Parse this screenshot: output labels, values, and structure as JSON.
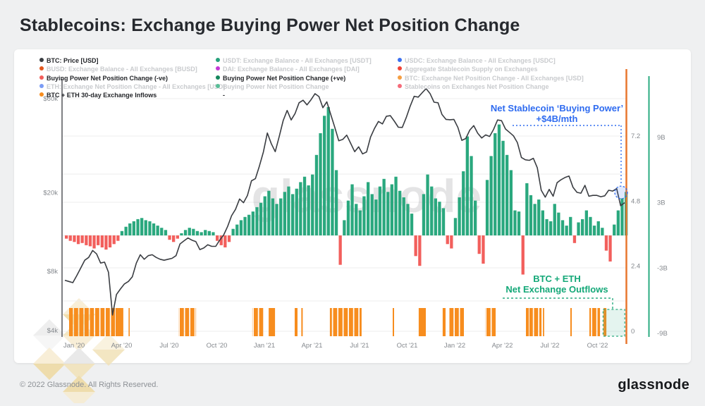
{
  "header": {
    "title": "Stablecoins: Exchange Buying Power Net Position Change"
  },
  "footer": {
    "copyright": "© 2022 Glassnode. All Rights Reserved.",
    "brand": "glassnode"
  },
  "watermark": "glassnode",
  "annotations": {
    "buying_power_line1": "Net Stablecoin ‘Buying Power’",
    "buying_power_line2": "+$4B/mth",
    "outflows_line1": "BTC + ETH",
    "outflows_line2": "Net Exchange Outflows"
  },
  "legend": {
    "columns": [
      [
        {
          "label": "BTC: Price [USD]",
          "color": "#3a3d42",
          "active": true
        },
        {
          "label": "BUSD: Exchange Balance - All Exchanges [BUSD]",
          "color": "#e2571e",
          "active": false
        },
        {
          "label": "Buying Power Net Position Change (-ve)",
          "color": "#f25f5c",
          "active": true
        },
        {
          "label": "ETH: Exchange Net Position Change - All Exchanges [USD]",
          "color": "#7b9cf5",
          "active": false
        },
        {
          "label": "BTC + ETH 30-day Exchange Inflows",
          "color": "#f78d1e",
          "active": true
        }
      ],
      [
        {
          "label": "USDT: Exchange Balance - All Exchanges [USDT]",
          "color": "#26a17b",
          "active": false
        },
        {
          "label": "DAI: Exchange Balance - All Exchanges [DAI]",
          "color": "#c43ad6",
          "active": false
        },
        {
          "label": "Buying Power Net Position Change (+ve)",
          "color": "#15865c",
          "active": true
        },
        {
          "label": "Buying Power Net Position Change",
          "color": "#57bd96",
          "active": false
        },
        {
          "label": "-",
          "color": "",
          "active": true
        }
      ],
      [
        {
          "label": "USDC: Exchange Balance - All Exchanges [USDC]",
          "color": "#3b70f0",
          "active": false
        },
        {
          "label": "Aggregate Stablecoin Supply on Exchanges",
          "color": "#f04438",
          "active": false
        },
        {
          "label": "BTC: Exchange Net Position Change - All Exchanges [USD]",
          "color": "#f59e42",
          "active": false
        },
        {
          "label": "Stablecoins on Exchanges Net Position Change",
          "color": "#f56b7a",
          "active": false
        }
      ]
    ]
  },
  "chart_data": {
    "type": "mixed",
    "x_axis": {
      "tick_labels": [
        "Jan '20",
        "Apr '20",
        "Jul '20",
        "Oct '20",
        "Jan '21",
        "Apr '21",
        "Jul '21",
        "Oct '21",
        "Jan '22",
        "Apr '22",
        "Jul '22",
        "Oct '22"
      ],
      "tick_months": [
        0,
        3,
        6,
        9,
        12,
        15,
        18,
        21,
        24,
        27,
        30,
        33
      ]
    },
    "y_axis_left_price": {
      "scale": "log",
      "labels": [
        "$60k",
        "$20k",
        "$8k",
        "$4k"
      ],
      "values_k": [
        60,
        20,
        8,
        4
      ],
      "color": "#85898e"
    },
    "y_axis_right_inflow": {
      "labels": [
        "7.2",
        "4.8",
        "2.4",
        "0"
      ],
      "values": [
        7.2,
        4.8,
        2.4,
        0
      ],
      "axis_color": "#e8772e"
    },
    "y_axis_right_buying_power": {
      "labels": [
        "9B",
        "3B",
        "-3B",
        "-9B"
      ],
      "values": [
        9,
        3,
        -3,
        -9
      ],
      "axis_color": "#2bab80"
    },
    "series": [
      {
        "name": "BTC: Price [USD]",
        "type": "line",
        "axis": "left_log",
        "unit": "thousand USD",
        "color": "#3a3d42",
        "start_month": -0.6,
        "step_month": 0.25,
        "values": [
          7.2,
          7.1,
          7.0,
          7.6,
          8.3,
          9.1,
          9.4,
          10.2,
          9.8,
          8.8,
          8.9,
          7.9,
          4.8,
          6.1,
          6.5,
          6.9,
          7.1,
          7.5,
          8.8,
          9.7,
          9.2,
          9.6,
          9.7,
          9.4,
          9.2,
          9.1,
          9.2,
          9.3,
          9.6,
          11.0,
          11.4,
          11.8,
          11.5,
          11.3,
          10.3,
          10.5,
          10.9,
          10.7,
          10.7,
          11.5,
          12.2,
          13.5,
          15.3,
          16.5,
          18.6,
          17.8,
          19.4,
          23.0,
          23.6,
          27.3,
          32.2,
          40.2,
          35.5,
          32.3,
          38.6,
          46.5,
          52.3,
          46.8,
          50.5,
          57.2,
          58.9,
          55.8,
          59.2,
          63.6,
          61.5,
          54.0,
          57.8,
          49.7,
          42.9,
          36.7,
          37.3,
          39.2,
          35.6,
          32.3,
          34.2,
          31.5,
          32.2,
          38.3,
          42.4,
          46.0,
          44.7,
          48.9,
          49.2,
          46.1,
          43.0,
          42.9,
          48.2,
          55.1,
          61.7,
          61.1,
          64.3,
          67.5,
          63.6,
          57.6,
          57.2,
          49.9,
          47.1,
          46.9,
          47.1,
          42.9,
          36.9,
          37.7,
          41.6,
          43.8,
          40.1,
          37.9,
          39.3,
          38.6,
          41.9,
          46.8,
          46.4,
          42.1,
          40.5,
          38.9,
          35.9,
          30.2,
          29.4,
          29.2,
          29.9,
          26.8,
          20.6,
          19.0,
          20.8,
          19.2,
          22.5,
          23.3,
          23.9,
          24.3,
          21.3,
          20.1,
          19.9,
          21.8,
          19.2,
          19.4,
          19.4,
          19.1,
          19.3,
          20.6,
          20.4,
          21.0,
          17.2,
          17.8
        ]
      },
      {
        "name": "Buying Power Net Position Change",
        "type": "bar",
        "axis": "right_billions",
        "unit": "billion USD",
        "color_positive": "#2aa87e",
        "color_negative": "#f25f5c",
        "start_month": -0.6,
        "step_month": 0.25,
        "values": [
          -0.3,
          -0.5,
          -0.6,
          -0.8,
          -0.7,
          -0.9,
          -1.0,
          -1.2,
          -0.9,
          -1.1,
          -1.3,
          -1.1,
          -0.8,
          -0.5,
          0.4,
          0.8,
          1.1,
          1.3,
          1.5,
          1.6,
          1.4,
          1.3,
          1.1,
          0.9,
          0.7,
          0.5,
          -0.4,
          -0.6,
          -0.3,
          0.2,
          0.5,
          0.7,
          0.6,
          0.4,
          0.3,
          0.5,
          0.4,
          0.3,
          -0.5,
          -0.9,
          -1.1,
          -0.6,
          0.6,
          1.0,
          1.4,
          1.7,
          1.9,
          2.2,
          2.6,
          3.0,
          3.6,
          4.1,
          3.4,
          2.9,
          3.4,
          4.0,
          4.5,
          3.8,
          4.3,
          4.9,
          5.4,
          4.6,
          5.6,
          7.4,
          9.4,
          11.0,
          11.8,
          9.8,
          6.0,
          -2.7,
          1.4,
          3.2,
          4.7,
          2.9,
          2.3,
          3.6,
          4.9,
          3.8,
          3.3,
          4.5,
          5.2,
          4.0,
          4.7,
          5.4,
          4.1,
          3.5,
          2.9,
          2.0,
          -1.9,
          -2.8,
          3.8,
          5.6,
          4.5,
          3.4,
          3.1,
          2.5,
          -0.8,
          -1.2,
          1.6,
          3.5,
          5.9,
          9.1,
          7.3,
          3.2,
          -1.7,
          -2.6,
          5.1,
          7.3,
          9.4,
          10.2,
          8.7,
          7.4,
          6.0,
          2.3,
          2.2,
          -3.6,
          4.8,
          3.7,
          2.9,
          3.3,
          2.3,
          1.5,
          1.3,
          2.9,
          2.1,
          1.4,
          0.9,
          1.7,
          -0.7,
          1.2,
          1.5,
          2.3,
          1.7,
          0.9,
          1.3,
          0.7,
          -1.4,
          -2.4,
          1.0,
          2.3,
          3.4,
          4.0
        ]
      },
      {
        "name": "BTC + ETH 30-day Exchange Inflows",
        "type": "event-stripes",
        "color": "#f78d1e",
        "segments_months": [
          [
            -0.31,
            2.58
          ],
          [
            2.62,
            3.11
          ],
          [
            3.44,
            3.51
          ],
          [
            6.58,
            7.69
          ],
          [
            11.24,
            12.0
          ],
          [
            12.27,
            12.67
          ],
          [
            13.91,
            14.09
          ],
          [
            14.33,
            14.42
          ],
          [
            16.13,
            18.13
          ],
          [
            20.09,
            20.18
          ],
          [
            21.73,
            22.18
          ],
          [
            23.24,
            23.42
          ],
          [
            23.64,
            24.58
          ],
          [
            25.91,
            26.58
          ],
          [
            28.49,
            28.67
          ],
          [
            28.71,
            29.47
          ],
          [
            29.56,
            29.64
          ],
          [
            31.29,
            31.38
          ],
          [
            32.49,
            33.16
          ],
          [
            33.38,
            33.56
          ]
        ]
      }
    ],
    "highlight": {
      "endpoint_value_billion": 4.0,
      "outflow_window_months": [
        33.35,
        34.72
      ]
    }
  }
}
